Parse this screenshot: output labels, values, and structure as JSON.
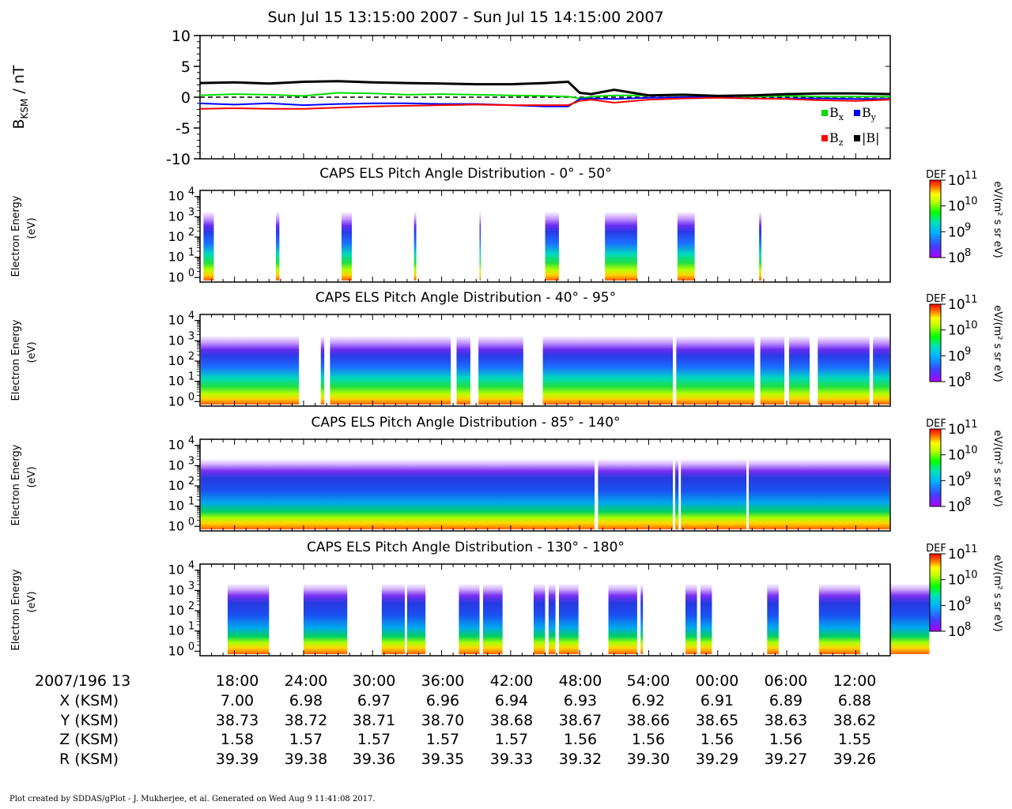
{
  "figure": {
    "title": "Sun Jul 15 13:15:00 2007 - Sun Jul 15 14:15:00 2007",
    "footer": "Plot created by SDDAS/gPlot - J. Mukherjee, et al.  Generated on Wed Aug 9 11:41:08 2017."
  },
  "mag_panel": {
    "ylabel_main": "B",
    "ylabel_sub": "KSM",
    "ylabel_tail": " / nT",
    "legend": {
      "bx": {
        "label": "B",
        "sub": "x",
        "color": "#00dd00"
      },
      "by": {
        "label": "B",
        "sub": "y",
        "color": "#0000ff"
      },
      "bz": {
        "label": "B",
        "sub": "z",
        "color": "#ff0000"
      },
      "bt": {
        "label": "|B|",
        "color": "#000000"
      }
    }
  },
  "spectrogram_labels": {
    "ylabel_line1": "Electron Energy",
    "ylabel_line2": "(eV)",
    "colorbar_title": "DEF",
    "colorbar_units": "eV/(m² s sr eV)",
    "colorbar_ticks": [
      "10",
      "10",
      "10",
      "10"
    ],
    "colorbar_exps": [
      "11",
      "10",
      "9",
      "8"
    ],
    "ytick_base": "10",
    "ytick_exps": [
      "4",
      "3",
      "2",
      "1",
      "0"
    ]
  },
  "spectrograms": [
    {
      "title": "CAPS ELS Pitch Angle Distribution - 0° - 50°"
    },
    {
      "title": "CAPS ELS Pitch Angle Distribution - 40° - 95°"
    },
    {
      "title": "CAPS ELS Pitch Angle Distribution - 85° - 140°"
    },
    {
      "title": "CAPS ELS Pitch Angle Distribution - 130° - 180°"
    }
  ],
  "ephemeris": {
    "rows": [
      {
        "label": "2007/196 13",
        "values": [
          "18:00",
          "24:00",
          "30:00",
          "36:00",
          "42:00",
          "48:00",
          "54:00",
          "00:00",
          "06:00",
          "12:00"
        ]
      },
      {
        "label": "X (KSM)",
        "values": [
          "7.00",
          "6.98",
          "6.97",
          "6.96",
          "6.94",
          "6.93",
          "6.92",
          "6.91",
          "6.89",
          "6.88"
        ]
      },
      {
        "label": "Y (KSM)",
        "values": [
          "38.73",
          "38.72",
          "38.71",
          "38.70",
          "38.68",
          "38.67",
          "38.66",
          "38.65",
          "38.63",
          "38.62"
        ]
      },
      {
        "label": "Z (KSM)",
        "values": [
          "1.58",
          "1.57",
          "1.57",
          "1.57",
          "1.57",
          "1.56",
          "1.56",
          "1.56",
          "1.56",
          "1.55"
        ]
      },
      {
        "label": "R (KSM)",
        "values": [
          "39.39",
          "39.38",
          "39.36",
          "39.35",
          "39.33",
          "39.32",
          "39.30",
          "39.29",
          "39.27",
          "39.26"
        ]
      }
    ]
  },
  "chart_data": [
    {
      "type": "line",
      "title": "Sun Jul 15 13:15:00 2007 - Sun Jul 15 14:15:00 2007",
      "xlabel": "",
      "ylabel": "BKSM / nT",
      "ylim": [
        -10,
        10
      ],
      "yticks": [
        10,
        5,
        0,
        -5,
        -10
      ],
      "x_unit": "minutes after 13:15",
      "x": [
        0,
        3,
        6,
        9,
        12,
        15,
        18,
        21,
        24,
        27,
        30,
        32,
        33,
        34,
        36,
        39,
        42,
        45,
        48,
        51,
        54,
        57,
        60
      ],
      "series": [
        {
          "name": "Bx",
          "color": "#00dd00",
          "values": [
            0.3,
            0.5,
            0.4,
            0.2,
            0.7,
            0.6,
            0.4,
            0.5,
            0.4,
            0.3,
            0.2,
            0.1,
            -0.2,
            0.1,
            0.3,
            0.3,
            0.3,
            0.2,
            0.1,
            0.2,
            0.1,
            0.1,
            0.1
          ]
        },
        {
          "name": "By",
          "color": "#0000ff",
          "values": [
            -1.0,
            -1.2,
            -1.0,
            -1.3,
            -1.1,
            -1.0,
            -1.0,
            -1.1,
            -1.1,
            -1.3,
            -1.5,
            -1.5,
            -0.3,
            -0.2,
            -0.3,
            -0.1,
            0.0,
            0.0,
            -0.2,
            -0.2,
            -0.2,
            -0.3,
            -0.3
          ]
        },
        {
          "name": "Bz",
          "color": "#ff0000",
          "values": [
            -1.9,
            -1.8,
            -1.9,
            -1.9,
            -1.7,
            -1.5,
            -1.4,
            -1.3,
            -1.2,
            -1.3,
            -1.3,
            -1.3,
            -0.6,
            -0.4,
            -0.9,
            -0.4,
            -0.2,
            -0.1,
            -0.2,
            -0.3,
            -0.5,
            -0.6,
            -0.4
          ]
        },
        {
          "name": "|B|",
          "color": "#000000",
          "values": [
            2.3,
            2.4,
            2.2,
            2.5,
            2.6,
            2.4,
            2.3,
            2.2,
            2.1,
            2.1,
            2.3,
            2.5,
            0.7,
            0.5,
            1.2,
            0.3,
            0.4,
            0.2,
            0.3,
            0.5,
            0.6,
            0.6,
            0.5
          ]
        }
      ],
      "reference_line": 0,
      "legend_position": "bottom-right"
    },
    {
      "type": "heatmap",
      "title": "CAPS ELS Pitch Angle Distribution - 0° - 50°",
      "ylabel": "Electron Energy (eV)",
      "ylim": [
        0.6,
        20000
      ],
      "y_scale": "log",
      "colorbar": {
        "label": "DEF",
        "units": "eV/(m² s sr eV)",
        "range": [
          100000000.0,
          100000000000.0
        ]
      },
      "coverage_minutes": [
        [
          0.3,
          1.2
        ],
        [
          6.6,
          6.9
        ],
        [
          12.3,
          13.2
        ],
        [
          18.6,
          18.8
        ],
        [
          24.3,
          24.4
        ],
        [
          30.0,
          31.2
        ],
        [
          35.2,
          38.0
        ],
        [
          41.5,
          43.0
        ],
        [
          48.6,
          48.8
        ]
      ]
    },
    {
      "type": "heatmap",
      "title": "CAPS ELS Pitch Angle Distribution - 40° - 95°",
      "ylabel": "Electron Energy (eV)",
      "ylim": [
        0.6,
        20000
      ],
      "y_scale": "log",
      "colorbar": {
        "label": "DEF",
        "units": "eV/(m² s sr eV)",
        "range": [
          100000000.0,
          100000000000.0
        ]
      },
      "gaps_minutes": [
        [
          8.6,
          10.5
        ],
        [
          10.8,
          11.3
        ],
        [
          21.8,
          22.3
        ],
        [
          23.5,
          24.2
        ],
        [
          28.1,
          29.8
        ],
        [
          41.1,
          41.4
        ],
        [
          48.2,
          48.7
        ],
        [
          50.8,
          51.2
        ],
        [
          53.0,
          53.7
        ],
        [
          58.2,
          58.5
        ]
      ]
    },
    {
      "type": "heatmap",
      "title": "CAPS ELS Pitch Angle Distribution - 85° - 140°",
      "ylabel": "Electron Energy (eV)",
      "ylim": [
        0.6,
        20000
      ],
      "y_scale": "log",
      "colorbar": {
        "label": "DEF",
        "units": "eV/(m² s sr eV)",
        "range": [
          100000000.0,
          100000000000.0
        ]
      },
      "gaps_minutes": [
        [
          34.3,
          34.6
        ],
        [
          41.1,
          41.3
        ],
        [
          41.6,
          41.8
        ],
        [
          47.5,
          47.7
        ]
      ]
    },
    {
      "type": "heatmap",
      "title": "CAPS ELS Pitch Angle Distribution - 130° - 180°",
      "ylabel": "Electron Energy (eV)",
      "ylim": [
        0.6,
        20000
      ],
      "y_scale": "log",
      "colorbar": {
        "label": "DEF",
        "units": "eV/(m² s sr eV)",
        "range": [
          100000000.0,
          100000000000.0
        ]
      },
      "coverage_minutes": [
        [
          2.4,
          6.0
        ],
        [
          9.0,
          12.8
        ],
        [
          15.8,
          17.8
        ],
        [
          18.0,
          19.6
        ],
        [
          22.5,
          24.3
        ],
        [
          24.6,
          26.3
        ],
        [
          29.0,
          30.0
        ],
        [
          30.3,
          30.9
        ],
        [
          31.2,
          32.9
        ],
        [
          35.5,
          38.0
        ],
        [
          38.3,
          38.5
        ],
        [
          42.2,
          43.2
        ],
        [
          43.5,
          44.5
        ],
        [
          49.3,
          50.3
        ],
        [
          53.8,
          57.4
        ],
        [
          60.0,
          63.4
        ]
      ]
    }
  ]
}
